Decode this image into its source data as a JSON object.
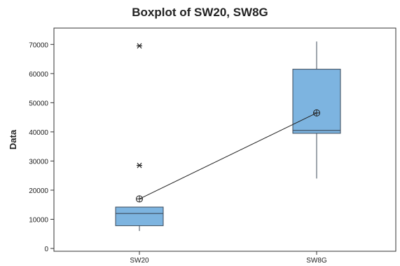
{
  "chart_data": {
    "type": "boxplot",
    "title": "Boxplot of SW20, SW8G",
    "xlabel": "",
    "ylabel": "Data",
    "categories": [
      "SW20",
      "SW8G"
    ],
    "ylim": [
      0,
      72000
    ],
    "yticks": [
      0,
      10000,
      20000,
      30000,
      40000,
      50000,
      60000,
      70000
    ],
    "ytick_labels": [
      "0",
      "10000",
      "20000",
      "30000",
      "40000",
      "50000",
      "60000",
      "70000"
    ],
    "grid": false,
    "box_color": "#7db4e0",
    "box_edge_color": "#3c4a5a",
    "mean_marker": "circle-plus",
    "mean_connect_line": true,
    "boxes": [
      {
        "category": "SW20",
        "whisker_low": 6000,
        "q1": 7800,
        "median": 12000,
        "q3": 14200,
        "whisker_high": 14200,
        "mean": 17000,
        "outliers": [
          28500,
          69500
        ]
      },
      {
        "category": "SW8G",
        "whisker_low": 24000,
        "q1": 39500,
        "median": 40500,
        "q3": 61500,
        "whisker_high": 71000,
        "mean": 46500,
        "outliers": []
      }
    ]
  }
}
